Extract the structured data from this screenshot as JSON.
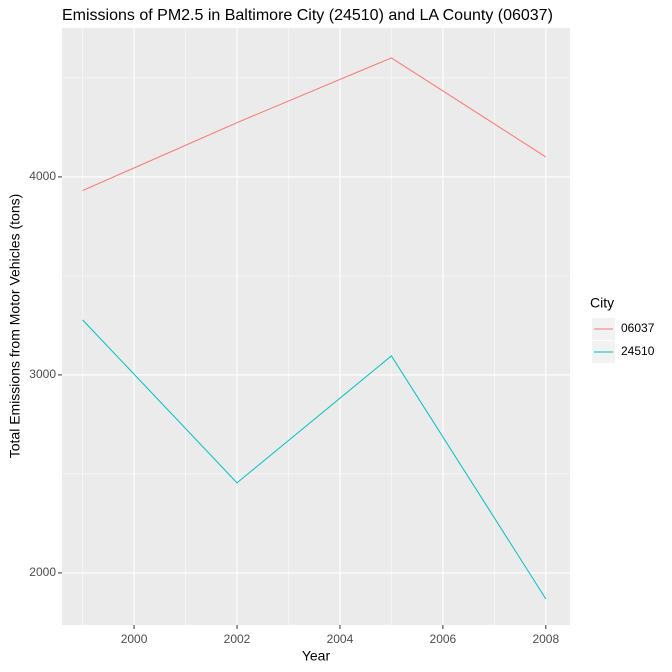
{
  "chart_data": {
    "type": "line",
    "title": "Emissions of PM2.5 in Baltimore City (24510) and LA County (06037)",
    "x_label": "Year",
    "y_label": "Total Emissions from Motor Vehicles (tons)",
    "x": [
      1999,
      2002,
      2005,
      2008
    ],
    "series": [
      {
        "name": "06037",
        "color": "#f8766d",
        "values": [
          3931,
          4274,
          4601,
          4101
        ]
      },
      {
        "name": "24510",
        "color": "#00bfc4",
        "values": [
          3278,
          2455,
          3096,
          1869
        ]
      }
    ],
    "xlim": [
      1998.6,
      2008.47
    ],
    "xticks": [
      2000,
      2002,
      2004,
      2006,
      2008
    ],
    "ylim": [
      1737,
      4752
    ],
    "yticks": [
      2000,
      3000,
      4000
    ],
    "grid": true,
    "legend_title": "City",
    "legend_position": "right"
  }
}
